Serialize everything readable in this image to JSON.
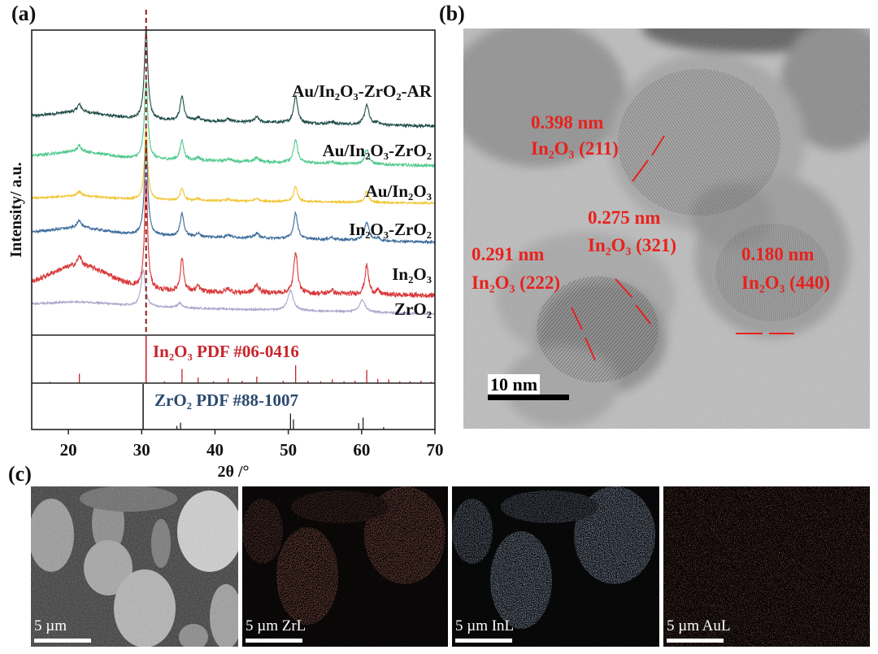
{
  "panel_labels": {
    "a": "(a)",
    "b": "(b)",
    "c": "(c)"
  },
  "chart_data": {
    "type": "line",
    "xlabel": "2θ /°",
    "ylabel": "Intensity/ a.u.",
    "xlim": [
      15,
      70
    ],
    "xticks": [
      20,
      30,
      40,
      50,
      60,
      70
    ],
    "grid": false,
    "reference_line_x": 30.6,
    "reference_line_color": "#8b1a1a",
    "series": [
      {
        "name": "Au/In₂O₃-ZrO₂-AR",
        "color": "#1e4d47",
        "offset": 70,
        "slope": 3,
        "hump": [
          21.5,
          2,
          5
        ],
        "noise": 0.45,
        "peaks": [
          [
            21.5,
            2.5,
            0.7
          ],
          [
            30.6,
            30,
            0.55
          ],
          [
            35.5,
            8,
            0.6
          ],
          [
            37.7,
            1.2,
            0.6
          ],
          [
            41.8,
            0.8,
            0.7
          ],
          [
            45.7,
            1.6,
            0.7
          ],
          [
            51.0,
            9,
            0.65
          ],
          [
            55.9,
            0.7,
            0.7
          ],
          [
            60.7,
            6.5,
            0.7
          ],
          [
            62.2,
            0.8,
            0.6
          ]
        ]
      },
      {
        "name": "Au/In₂O₃-ZrO₂",
        "color": "#4fc98c",
        "offset": 57,
        "slope": 3,
        "hump": [
          21.5,
          2,
          5
        ],
        "noise": 0.45,
        "peaks": [
          [
            21.5,
            2,
            0.7
          ],
          [
            30.6,
            26,
            0.55
          ],
          [
            35.5,
            6.5,
            0.6
          ],
          [
            37.7,
            1.0,
            0.6
          ],
          [
            41.8,
            0.8,
            0.7
          ],
          [
            45.7,
            1.4,
            0.7
          ],
          [
            51.0,
            7.5,
            0.65
          ],
          [
            55.9,
            0.6,
            0.7
          ],
          [
            60.7,
            5,
            0.7
          ]
        ]
      },
      {
        "name": "Au/In₂O₃",
        "color": "#f0c52e",
        "offset": 44,
        "slope": 1.5,
        "hump": [
          21.5,
          1,
          5
        ],
        "noise": 0.3,
        "peaks": [
          [
            21.5,
            1.5,
            0.7
          ],
          [
            30.6,
            24,
            0.5
          ],
          [
            35.5,
            4,
            0.55
          ],
          [
            37.7,
            0.6,
            0.6
          ],
          [
            41.8,
            0.5,
            0.7
          ],
          [
            45.7,
            0.9,
            0.7
          ],
          [
            51.0,
            5,
            0.6
          ],
          [
            60.7,
            3.5,
            0.6
          ]
        ]
      },
      {
        "name": "In₂O₃-ZrO₂",
        "color": "#3b6a9b",
        "offset": 32,
        "slope": 3,
        "hump": [
          21.5,
          2,
          5
        ],
        "noise": 0.4,
        "peaks": [
          [
            21.5,
            2.5,
            0.7
          ],
          [
            30.6,
            30,
            0.55
          ],
          [
            35.5,
            7.5,
            0.6
          ],
          [
            37.7,
            1.0,
            0.6
          ],
          [
            41.8,
            0.9,
            0.7
          ],
          [
            45.7,
            1.6,
            0.7
          ],
          [
            51.0,
            8.5,
            0.65
          ],
          [
            55.9,
            0.8,
            0.7
          ],
          [
            60.7,
            6,
            0.75
          ],
          [
            62.2,
            0.8,
            0.6
          ]
        ]
      },
      {
        "name": "In₂O₃",
        "color": "#d9383a",
        "offset": 14,
        "slope": 2,
        "hump": [
          21.5,
          8,
          6
        ],
        "noise": 0.8,
        "peaks": [
          [
            21.5,
            3,
            0.7
          ],
          [
            30.6,
            36,
            0.5
          ],
          [
            35.5,
            11,
            0.55
          ],
          [
            37.7,
            1.8,
            0.6
          ],
          [
            41.8,
            1.2,
            0.7
          ],
          [
            45.7,
            2.6,
            0.7
          ],
          [
            51.0,
            14,
            0.6
          ],
          [
            55.9,
            1.2,
            0.7
          ],
          [
            60.7,
            9.5,
            0.6
          ],
          [
            62.2,
            1.2,
            0.6
          ]
        ]
      },
      {
        "name": "ZrO₂",
        "color": "#a9a7cb",
        "offset": 8.5,
        "slope": 3,
        "hump": [
          22,
          1.2,
          6
        ],
        "noise": 0.3,
        "peaks": [
          [
            30.2,
            12,
            0.7
          ],
          [
            35.2,
            1.6,
            0.8
          ],
          [
            50.3,
            6.5,
            0.9
          ],
          [
            60.1,
            4,
            0.9
          ]
        ]
      }
    ],
    "reference_patterns": [
      {
        "label": "In₂O₃  PDF #06-0416",
        "color": "#c7252c",
        "sticks": [
          [
            17.5,
            0.03
          ],
          [
            21.5,
            0.2
          ],
          [
            30.6,
            1.0
          ],
          [
            33.1,
            0.04
          ],
          [
            35.5,
            0.3
          ],
          [
            37.7,
            0.12
          ],
          [
            39.8,
            0.04
          ],
          [
            41.8,
            0.1
          ],
          [
            43.7,
            0.05
          ],
          [
            45.7,
            0.14
          ],
          [
            49.3,
            0.05
          ],
          [
            51.0,
            0.38
          ],
          [
            52.7,
            0.05
          ],
          [
            54.4,
            0.04
          ],
          [
            56.0,
            0.08
          ],
          [
            57.6,
            0.04
          ],
          [
            59.1,
            0.05
          ],
          [
            60.7,
            0.28
          ],
          [
            62.2,
            0.09
          ],
          [
            63.7,
            0.08
          ],
          [
            65.2,
            0.04
          ],
          [
            66.6,
            0.04
          ],
          [
            68.1,
            0.05
          ],
          [
            69.5,
            0.03
          ]
        ]
      },
      {
        "label": "ZrO₂  PDF #88-1007",
        "color": "#2b4a6f",
        "sticks": [
          [
            30.2,
            1.0
          ],
          [
            34.8,
            0.08
          ],
          [
            35.3,
            0.15
          ],
          [
            50.3,
            0.35
          ],
          [
            50.7,
            0.22
          ],
          [
            59.6,
            0.14
          ],
          [
            60.2,
            0.26
          ],
          [
            63.0,
            0.05
          ]
        ]
      }
    ]
  },
  "tem": {
    "annotations": [
      {
        "d": "0.398 nm",
        "plane": "In₂O₃ (211)"
      },
      {
        "d": "0.275 nm",
        "plane": "In₂O₃ (321)"
      },
      {
        "d": "0.291 nm",
        "plane": "In₂O₃ (222)"
      },
      {
        "d": "0.180 nm",
        "plane": "In₂O₃ (440)"
      }
    ],
    "annotation_color": "#e8211d",
    "scale_bar": "10 nm"
  },
  "eds_maps": [
    {
      "label": "5 µm"
    },
    {
      "label": "5 µm  ZrL",
      "color": "#c0392b"
    },
    {
      "label": "5 µm InL",
      "color": "#6f86b8"
    },
    {
      "label": "5 µm AuL",
      "color": "#b0413a"
    }
  ]
}
